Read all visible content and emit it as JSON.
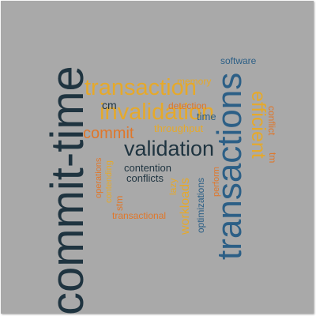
{
  "colors": {
    "background": "#a9a9a9",
    "dark_navy": "#1f3440",
    "blue": "#2c5f86",
    "gold": "#e6a92a",
    "orange": "#e0772a"
  },
  "words": [
    {
      "text": "commit-time",
      "color": "#1f3440"
    },
    {
      "text": "transactions",
      "color": "#2c5f86"
    },
    {
      "text": "transaction",
      "color": "#e6a92a"
    },
    {
      "text": "invalidation",
      "color": "#e6a92a"
    },
    {
      "text": "validation",
      "color": "#1f3440"
    },
    {
      "text": "efficient",
      "color": "#e6a92a"
    },
    {
      "text": "commit",
      "color": "#e0772a"
    },
    {
      "text": "workloads",
      "color": "#e6a92a"
    },
    {
      "text": "memory",
      "color": "#e6a92a"
    },
    {
      "text": "software",
      "color": "#2c5f86"
    },
    {
      "text": "detection",
      "color": "#e0772a"
    },
    {
      "text": "cm",
      "color": "#1f3440"
    },
    {
      "text": "time",
      "color": "#2c5f86"
    },
    {
      "text": "throughput",
      "color": "#e6a92a"
    },
    {
      "text": "contention",
      "color": "#1f3440"
    },
    {
      "text": "conflicts",
      "color": "#1f3440"
    },
    {
      "text": "transactional",
      "color": "#e0772a"
    },
    {
      "text": "optimizations",
      "color": "#2c5f86"
    },
    {
      "text": "conflict",
      "color": "#e0772a"
    },
    {
      "text": "tm",
      "color": "#e0772a"
    },
    {
      "text": "perform",
      "color": "#e0772a"
    },
    {
      "text": "lazy",
      "color": "#e6a92a"
    },
    {
      "text": "operations",
      "color": "#e0772a"
    },
    {
      "text": "contending",
      "color": "#e6a92a"
    },
    {
      "text": "stm",
      "color": "#e0772a"
    }
  ]
}
